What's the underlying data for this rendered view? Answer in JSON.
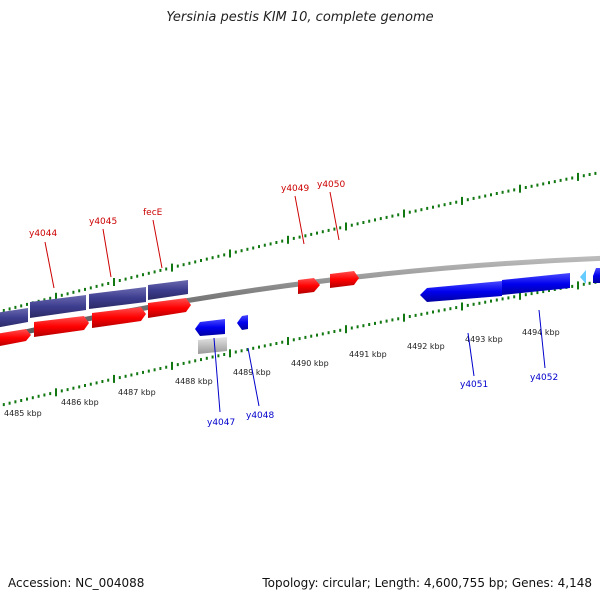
{
  "title": "Yersinia pestis KIM 10, complete genome",
  "footer": {
    "accession": "Accession: NC_004088",
    "stats": "Topology: circular; Length: 4,600,755 bp; Genes: 4,148"
  },
  "scale_labels": [
    "4485 kbp",
    "4486 kbp",
    "4487 kbp",
    "4488 kbp",
    "4489 kbp",
    "4490 kbp",
    "4491 kbp",
    "4492 kbp",
    "4493 kbp",
    "4494 kbp"
  ],
  "gene_labels": {
    "forward": [
      "y4044",
      "y4045",
      "fecE",
      "y4049",
      "y4050"
    ],
    "reverse": [
      "y4047",
      "y4048",
      "y4051",
      "y4052"
    ]
  },
  "colors": {
    "forward_label": "#cc0000",
    "reverse_label": "#0000cc",
    "forward_cds": "#ff0000",
    "reverse_cds": "#0000ee",
    "operon": "#3d3d8f",
    "other_feature": "#bbbbbb",
    "light_feature": "#66ccff",
    "backbone": "#888888",
    "tick": "#117711"
  }
}
